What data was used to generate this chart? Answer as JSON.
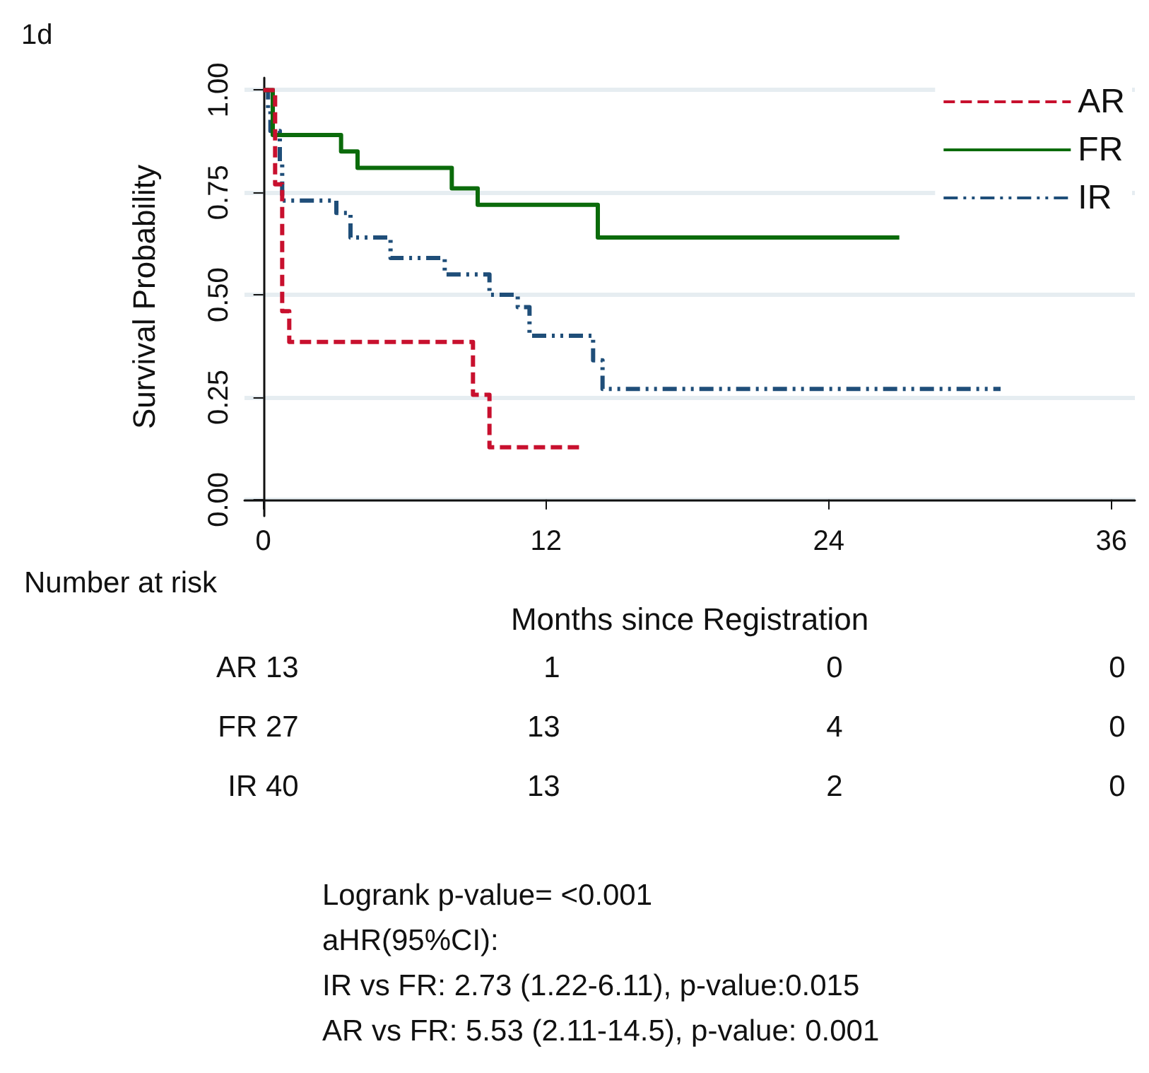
{
  "chart_data": {
    "type": "step",
    "title": "1d",
    "xlabel": "Months since Registration",
    "ylabel": "Survival Probability",
    "xlim": [
      -0.8,
      37
    ],
    "xticks": [
      0,
      12,
      24,
      36
    ],
    "ylim": [
      -0.04,
      1.03
    ],
    "yticks": [
      {
        "value": 0,
        "label": "0.00"
      },
      {
        "value": 0.25,
        "label": "0.25"
      },
      {
        "value": 0.5,
        "label": "0.50"
      },
      {
        "value": 0.75,
        "label": "0.75"
      },
      {
        "value": 1,
        "label": "1.00"
      }
    ],
    "grid": "y",
    "legend": "top right",
    "marker": "none",
    "series": [
      {
        "name": "AR",
        "color": "#c8102e",
        "line_style": "dashed",
        "x": [
          0,
          0.5,
          0.8,
          1.1,
          8.9,
          9.6,
          13.6
        ],
        "values": [
          1,
          0.77,
          0.46,
          0.385,
          0.256,
          0.128,
          0.128
        ]
      },
      {
        "name": "FR",
        "color": "#0b6b0b",
        "line_style": "solid",
        "x": [
          0,
          0.4,
          3.3,
          4.0,
          8.0,
          9.1,
          14.2,
          27.0
        ],
        "values": [
          1,
          0.89,
          0.85,
          0.81,
          0.76,
          0.72,
          0.64,
          0.64
        ]
      },
      {
        "name": "IR",
        "color": "#1f4e79",
        "line_style": "dotted",
        "x": [
          0,
          0.2,
          0.3,
          0.7,
          0.8,
          3.1,
          3.7,
          5.4,
          7.7,
          9.6,
          10.8,
          11.3,
          14.0,
          14.4,
          31.3
        ],
        "values": [
          1,
          0.95,
          0.9,
          0.82,
          0.73,
          0.7,
          0.64,
          0.59,
          0.55,
          0.5,
          0.47,
          0.4,
          0.34,
          0.27,
          0.27
        ]
      }
    ],
    "annotations": [
      "Number at risk",
      "AR 13 1 0 0",
      "FR 27 13 4 0",
      "IR 40 13 2 0",
      "Logrank p-value= <0.001",
      "aHR(95%CI):",
      "IR vs FR: 2.73 (1.22-6.11), p-value:0.015",
      "AR vs FR: 5.53 (2.11-14.5), p-value: 0.001"
    ]
  }
}
